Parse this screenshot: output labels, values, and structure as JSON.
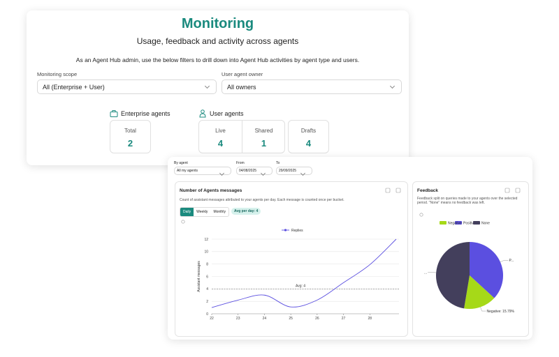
{
  "header": {
    "title": "Monitoring",
    "subtitle": "Usage, feedback and activity across agents",
    "description": "As an Agent Hub admin, use the below filters to drill down into Agent Hub activities by agent type and users."
  },
  "filters": [
    {
      "label": "Monitoring scope",
      "value": "All (Enterprise + User)"
    },
    {
      "label": "User agent owner",
      "value": "All owners"
    }
  ],
  "enterprise_agents": {
    "title": "Enterprise agents",
    "stats": [
      {
        "label": "Total",
        "value": 2
      }
    ]
  },
  "user_agents": {
    "title": "User agents",
    "stats": [
      {
        "label": "Live",
        "value": 4
      },
      {
        "label": "Shared",
        "value": 1
      },
      {
        "label": "Drafts",
        "value": 4
      }
    ]
  },
  "detail_filters": {
    "agent_label": "By agent",
    "agent_value": "All my agents",
    "from_label": "From",
    "from_value": "04/08/2025",
    "to_label": "To",
    "to_value": "29/09/2025"
  },
  "messages_chart": {
    "type": "line",
    "title": "Number of Agents messages",
    "subtitle": "Count of assistant messages attributed to your agents per day. Each message is counted once per bucket.",
    "tabs": [
      "Daily",
      "Weekly",
      "Monthly"
    ],
    "avg_badge": "Avg per day: 4",
    "ylabel": "Assistant messages",
    "x": [
      22,
      23,
      24,
      25,
      26,
      27,
      28,
      29
    ],
    "series": [
      {
        "name": "Replies",
        "color": "#5b4fe0",
        "values": [
          1,
          2.2,
          3,
          1.1,
          2.2,
          5,
          7.9,
          12
        ]
      }
    ],
    "xlim": [
      22,
      29
    ],
    "xticks": [
      22,
      23,
      24,
      25,
      26,
      27,
      28
    ],
    "ylim": [
      0,
      12
    ],
    "yticks": [
      0,
      2,
      4,
      6,
      8,
      10,
      12
    ],
    "grid": true,
    "reference_line": {
      "value": 4,
      "label": "Avg: 4"
    }
  },
  "feedback_chart": {
    "type": "pie",
    "title": "Feedback",
    "subtitle": "Feedback split on queries made to your agents over the selected period. \"None\" means no feedback was left.",
    "categories": [
      "Positive",
      "Negative",
      "None"
    ],
    "values": [
      36.84,
      15.79,
      47.37
    ],
    "colors": [
      "#5b4fe0",
      "#a6d918",
      "#433f5c"
    ],
    "slice_labels": [
      "P...",
      "Negative: 15.79%",
      "..."
    ]
  }
}
